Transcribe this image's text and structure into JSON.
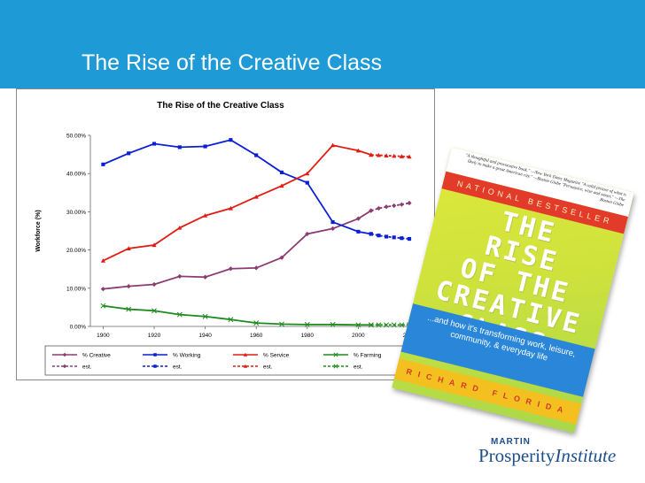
{
  "slide": {
    "title": "The Rise of the Creative Class",
    "header_color": "#1e9ad6"
  },
  "chart_data": {
    "type": "line",
    "title": "The Rise of the Creative Class",
    "ylabel": "Workforce (%)",
    "xlabel": "",
    "xlim": [
      1895,
      2020
    ],
    "ylim": [
      0,
      50
    ],
    "y_ticks": [
      "0.00%",
      "10.00%",
      "20.00%",
      "30.00%",
      "40.00%",
      "50.00%"
    ],
    "x_ticks": [
      "1900",
      "1920",
      "1940",
      "1960",
      "1980",
      "2000",
      "2020"
    ],
    "grid": false,
    "legend_position": "bottom",
    "series": [
      {
        "name": "% Creative",
        "color": "#8c3b73",
        "marker": "diamond",
        "dashed": false,
        "x": [
          1900,
          1910,
          1920,
          1930,
          1940,
          1950,
          1960,
          1970,
          1980,
          1990,
          2000,
          2005
        ],
        "y": [
          9.8,
          10.5,
          11.0,
          13.1,
          12.9,
          15.1,
          15.3,
          18.0,
          24.2,
          25.6,
          28.2,
          30.3
        ]
      },
      {
        "name": "% Working",
        "color": "#0a1fd6",
        "marker": "square",
        "dashed": false,
        "x": [
          1900,
          1910,
          1920,
          1930,
          1940,
          1950,
          1960,
          1970,
          1980,
          1990,
          2000,
          2005
        ],
        "y": [
          42.4,
          45.3,
          47.8,
          46.9,
          47.1,
          48.8,
          44.8,
          40.3,
          37.6,
          27.3,
          24.8,
          24.2
        ]
      },
      {
        "name": "% Service",
        "color": "#e21b10",
        "marker": "triangle",
        "dashed": false,
        "x": [
          1900,
          1910,
          1920,
          1930,
          1940,
          1950,
          1960,
          1970,
          1980,
          1990,
          2000,
          2005
        ],
        "y": [
          17.2,
          20.4,
          21.3,
          25.8,
          29.0,
          30.9,
          33.9,
          36.8,
          40.0,
          47.4,
          46.0,
          44.9
        ]
      },
      {
        "name": "% Farming",
        "color": "#1d8a1d",
        "marker": "cross",
        "dashed": false,
        "x": [
          1900,
          1910,
          1920,
          1930,
          1940,
          1950,
          1960,
          1970,
          1980,
          1990,
          2000,
          2005
        ],
        "y": [
          5.4,
          4.5,
          4.1,
          3.1,
          2.6,
          1.8,
          0.9,
          0.6,
          0.5,
          0.5,
          0.4,
          0.4
        ]
      },
      {
        "name": "est.",
        "color": "#8c3b73",
        "marker": "diamond",
        "dashed": true,
        "x": [
          2005,
          2008,
          2011,
          2014,
          2017,
          2020
        ],
        "y": [
          30.3,
          30.9,
          31.3,
          31.6,
          31.9,
          32.3
        ]
      },
      {
        "name": "est.",
        "color": "#0a1fd6",
        "marker": "square",
        "dashed": true,
        "x": [
          2005,
          2008,
          2011,
          2014,
          2017,
          2020
        ],
        "y": [
          24.2,
          23.8,
          23.5,
          23.3,
          23.1,
          22.9
        ]
      },
      {
        "name": "est.",
        "color": "#e21b10",
        "marker": "triangle",
        "dashed": true,
        "x": [
          2005,
          2008,
          2011,
          2014,
          2017,
          2020
        ],
        "y": [
          44.9,
          44.8,
          44.7,
          44.6,
          44.5,
          44.4
        ]
      },
      {
        "name": "est.",
        "color": "#1d8a1d",
        "marker": "cross",
        "dashed": true,
        "x": [
          2005,
          2008,
          2011,
          2014,
          2017,
          2020
        ],
        "y": [
          0.4,
          0.4,
          0.4,
          0.4,
          0.4,
          0.4
        ]
      }
    ]
  },
  "book": {
    "quote": "\"A thoughtful and provocative book.\" —New York Times Magazine \"A valid picture of what is likely to make a great American city.\" —Boston Globe \"Persuasive, wise and smart.\" —The Boston Globe",
    "banner": "NATIONAL BESTSELLER",
    "title_lines": [
      "THE",
      "RISE",
      "OF THE",
      "CREATIVE",
      "CLASS"
    ],
    "subtitle": "...and how it's transforming work, leisure, community, & everyday life",
    "author": "RICHARD FLORIDA"
  },
  "logo": {
    "line1": "MARTIN",
    "line2a": "Prosperity",
    "line2b": "Institute"
  }
}
